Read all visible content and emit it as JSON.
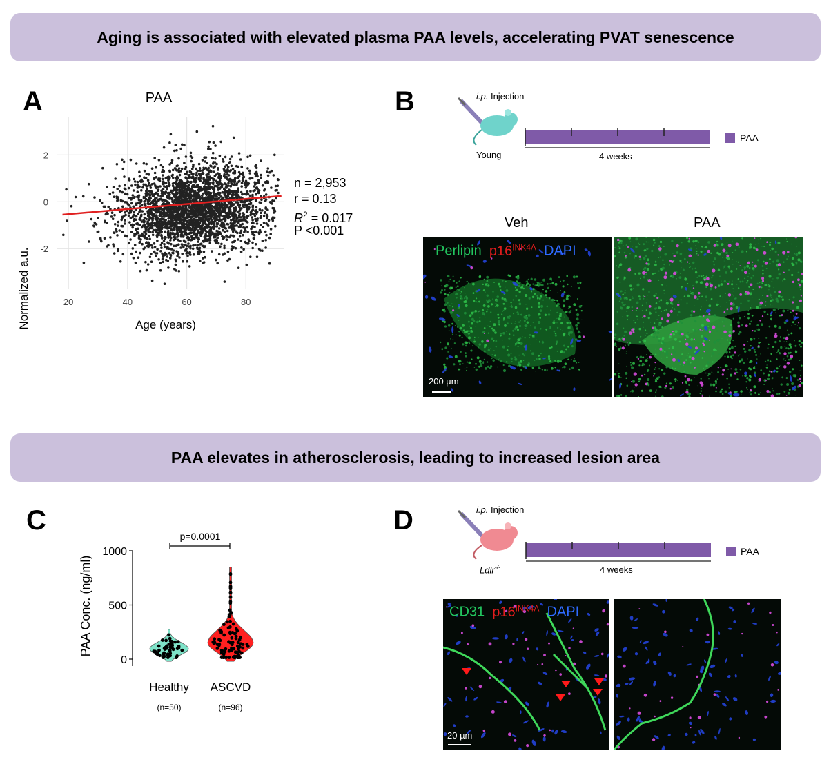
{
  "banners": {
    "top": "Aging is associated with elevated plasma PAA levels, accelerating PVAT senescence",
    "bottom": "PAA elevates in atherosclerosis, leading to increased lesion area"
  },
  "panels": {
    "a": "A",
    "b": "B",
    "c": "C",
    "d": "D"
  },
  "chart_data": [
    {
      "type": "scatter",
      "title": "PAA",
      "xlabel": "Age (years)",
      "ylabel": "Normalized a.u.",
      "xticks": [
        "20",
        "40",
        "60",
        "80"
      ],
      "yticks": [
        "2",
        "0",
        "-2"
      ],
      "xlim": [
        16,
        93
      ],
      "ylim": [
        -3.7,
        3.6
      ],
      "grid": true,
      "n_points": 2953,
      "regression": {
        "x": [
          18,
          92
        ],
        "y": [
          -0.55,
          0.25
        ],
        "color": "#e02020"
      },
      "stats": {
        "n": "n = 2,953",
        "r": "r = 0.13",
        "r2_label": "R",
        "r2_value": " = 0.017",
        "p": "P <0.001"
      }
    },
    {
      "type": "violin",
      "ylabel": "PAA Conc. (ng/ml)",
      "yticks": [
        "1000",
        "500",
        "0"
      ],
      "ylim": [
        0,
        1000
      ],
      "pvalue": "p=0.0001",
      "categories": [
        "Healthy",
        "ASCVD"
      ],
      "ns": [
        "(n=50)",
        "(n=96)"
      ],
      "series": [
        {
          "name": "Healthy",
          "color": "#7fe3c9",
          "median": 95,
          "max": 275,
          "min": 0
        },
        {
          "name": "ASCVD",
          "color": "#ff2020",
          "median": 150,
          "max": 850,
          "min": 0
        }
      ]
    }
  ],
  "panel_b": {
    "injection_prefix": "i.p.",
    "injection_label": "Injection",
    "mouse_label": "Young",
    "duration": "4 weeks",
    "legend": "PAA",
    "col_veh": "Veh",
    "col_paa": "PAA",
    "stain1": "Perlipin",
    "stain2": "p16",
    "stain2_sup": "INK4A",
    "stain3": "DAPI",
    "scale": "200 µm"
  },
  "panel_d": {
    "injection_prefix": "i.p.",
    "injection_label": "Injection",
    "mouse_label": "Ldlr",
    "mouse_sup": "-/-",
    "duration": "4 weeks",
    "legend": "PAA",
    "stain1": "CD31",
    "stain2": "p16",
    "stain2_sup": "INK4A",
    "stain3": "DAPI",
    "scale": "20 µm"
  },
  "colors": {
    "banner": "#cbc0dc",
    "bar": "#7f5aa8",
    "healthy": "#7fe3c9",
    "ascvd": "#ff2020"
  }
}
